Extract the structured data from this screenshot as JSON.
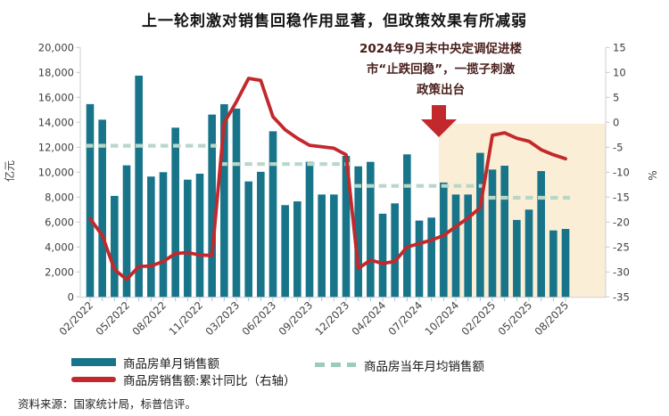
{
  "page": {
    "title": "上一轮刺激对销售回稳作用显著，但政策效果有所减弱",
    "source": "资料来源：国家统计局，标普信评。"
  },
  "legend": {
    "items": [
      {
        "label": "商品房单月销售额",
        "swatch": "teal-bar",
        "color": "#187489"
      },
      {
        "label": "商品房销售额:累计同比（右轴）",
        "swatch": "red-line",
        "color": "#c2282c"
      },
      {
        "label": "商品房当年月均销售额",
        "swatch": "dashed-line",
        "color": "#9ccabb"
      }
    ]
  },
  "chart_data": {
    "type": "bar",
    "title": "上一轮刺激对销售回稳作用显著，但政策效果有所减弱",
    "left_axis": {
      "label": "亿元",
      "min": 0,
      "max": 20000,
      "ticks": [
        0,
        2000,
        4000,
        6000,
        8000,
        10000,
        12000,
        14000,
        16000,
        18000,
        20000
      ]
    },
    "right_axis": {
      "label": "%",
      "min": -35,
      "max": 15,
      "ticks": [
        15,
        10,
        5,
        0,
        -5,
        -10,
        -15,
        -20,
        -25,
        -30,
        -35
      ]
    },
    "x_tick_labels": [
      "02/2022",
      "05/2022",
      "08/2022",
      "11/2022",
      "03/2023",
      "06/2023",
      "09/2023",
      "12/2023",
      "04/2024",
      "07/2024",
      "10/2024",
      "02/2025",
      "05/2025",
      "08/2025"
    ],
    "categories": [
      "02/2022",
      "03/2022",
      "04/2022",
      "05/2022",
      "06/2022",
      "07/2022",
      "08/2022",
      "09/2022",
      "10/2022",
      "11/2022",
      "12/2022",
      "02/2023",
      "03/2023",
      "04/2023",
      "05/2023",
      "06/2023",
      "07/2023",
      "08/2023",
      "09/2023",
      "10/2023",
      "11/2023",
      "12/2023",
      "02/2024",
      "03/2024",
      "04/2024",
      "05/2024",
      "06/2024",
      "07/2024",
      "08/2024",
      "09/2024",
      "10/2024",
      "11/2024",
      "12/2024",
      "02/2025",
      "03/2025",
      "04/2025",
      "05/2025",
      "06/2025",
      "07/2025",
      "08/2025"
    ],
    "series": [
      {
        "name": "商品房单月销售额",
        "type": "bar",
        "axis": "left",
        "color": "#187489",
        "values": [
          15460,
          14210,
          8100,
          10550,
          17740,
          9650,
          10000,
          13570,
          9400,
          9880,
          14620,
          15450,
          15100,
          9260,
          10030,
          13280,
          7360,
          7660,
          10830,
          8210,
          8210,
          11310,
          10470,
          10830,
          6670,
          7500,
          11430,
          6120,
          6360,
          9170,
          8210,
          8210,
          11550,
          10210,
          10520,
          6170,
          7000,
          10090,
          5330,
          5450
        ]
      },
      {
        "name": "商品房销售额:累计同比（右轴）",
        "type": "line",
        "axis": "right",
        "color": "#c2282c",
        "values": [
          -19.3,
          -22.7,
          -29.5,
          -31.5,
          -28.9,
          -28.8,
          -27.9,
          -26.3,
          -26.1,
          -26.6,
          -26.7,
          -0.1,
          4.1,
          8.8,
          8.4,
          1.1,
          -1.5,
          -3.2,
          -4.6,
          -4.9,
          -5.2,
          -6.5,
          -29.3,
          -27.6,
          -28.3,
          -27.9,
          -25.0,
          -24.3,
          -23.6,
          -22.7,
          -20.9,
          -19.2,
          -17.1,
          -2.6,
          -2.1,
          -3.2,
          -3.8,
          -5.5,
          -6.5,
          -7.3
        ]
      },
      {
        "name": "商品房当年月均销售额",
        "type": "dashed-step",
        "axis": "left",
        "color": "#b9d7c9",
        "segments": [
          {
            "year": "2022",
            "value": 12120
          },
          {
            "year": "2023",
            "value": 10650
          },
          {
            "year": "2024",
            "value": 8900
          },
          {
            "year": "2025",
            "value": 7950
          }
        ]
      }
    ],
    "highlight_region": {
      "from_month": "09/2024",
      "color": "#faeed6",
      "note": "policy stimulus period"
    },
    "annotation": {
      "lines": [
        "2024年9月末中央定调促进楼",
        "市“止跌回稳”，一揽子刺激",
        "政策出台"
      ],
      "text_color": "#4a201d",
      "arrow": "down",
      "arrow_color": "#c2282c"
    },
    "grid": false,
    "legend_position": "bottom"
  }
}
